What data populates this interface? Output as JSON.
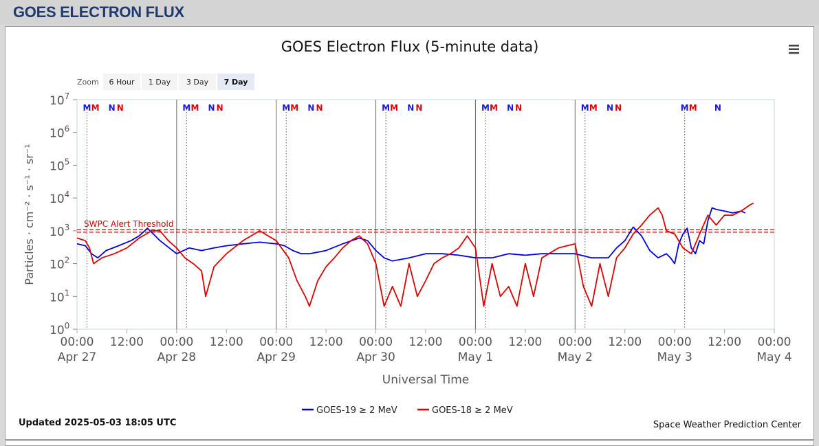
{
  "page": {
    "title": "GOES ELECTRON FLUX"
  },
  "chart": {
    "title": "GOES Electron Flux (5-minute data)",
    "zoom_label": "Zoom",
    "zoom_buttons": [
      {
        "label": "6 Hour",
        "selected": false
      },
      {
        "label": "1 Day",
        "selected": false
      },
      {
        "label": "3 Day",
        "selected": false
      },
      {
        "label": "7 Day",
        "selected": true
      }
    ],
    "updated": "Updated 2025-05-03 18:05 UTC",
    "credit": "Space Weather Prediction Center",
    "menu_icon": "hamburger-menu-icon"
  },
  "chart_data": {
    "type": "line",
    "title": "GOES Electron Flux (5-minute data)",
    "xlabel": "Universal Time",
    "ylabel": "Particles · cm⁻² · s⁻¹ · sr⁻¹",
    "yscale": "log",
    "ylim_exponent": [
      0,
      7
    ],
    "y_tick_base": "10",
    "y_tick_exponents": [
      "0",
      "1",
      "2",
      "3",
      "4",
      "5",
      "6",
      "7"
    ],
    "xlim_hours": [
      0,
      168
    ],
    "x_ticks": [
      {
        "t": 0,
        "time": "00:00",
        "date": "Apr 27"
      },
      {
        "t": 12,
        "time": "12:00",
        "date": ""
      },
      {
        "t": 24,
        "time": "00:00",
        "date": "Apr 28"
      },
      {
        "t": 36,
        "time": "12:00",
        "date": ""
      },
      {
        "t": 48,
        "time": "00:00",
        "date": "Apr 29"
      },
      {
        "t": 60,
        "time": "12:00",
        "date": ""
      },
      {
        "t": 72,
        "time": "00:00",
        "date": "Apr 30"
      },
      {
        "t": 84,
        "time": "12:00",
        "date": ""
      },
      {
        "t": 96,
        "time": "00:00",
        "date": "May 1"
      },
      {
        "t": 108,
        "time": "12:00",
        "date": ""
      },
      {
        "t": 120,
        "time": "00:00",
        "date": "May 2"
      },
      {
        "t": 132,
        "time": "12:00",
        "date": ""
      },
      {
        "t": 144,
        "time": "00:00",
        "date": "May 3"
      },
      {
        "t": 156,
        "time": "12:00",
        "date": ""
      },
      {
        "t": 168,
        "time": "00:00",
        "date": "May 4"
      }
    ],
    "threshold": {
      "label": "SWPC Alert Threshold",
      "value": 1000,
      "color": "#dd0000"
    },
    "day_lines_hours": [
      24,
      48,
      72,
      96,
      120
    ],
    "noon_lines_hours": [
      2.4,
      26.4,
      50.4,
      74.4,
      98.4,
      122.4,
      146.4
    ],
    "markers": [
      {
        "t": 2.4,
        "label": "M",
        "color": "#1a1adb"
      },
      {
        "t": 4.4,
        "label": "M",
        "color": "#dd0000"
      },
      {
        "t": 8.4,
        "label": "N",
        "color": "#1a1adb"
      },
      {
        "t": 10.4,
        "label": "N",
        "color": "#dd0000"
      },
      {
        "t": 26.4,
        "label": "M",
        "color": "#1a1adb"
      },
      {
        "t": 28.4,
        "label": "M",
        "color": "#dd0000"
      },
      {
        "t": 32.4,
        "label": "N",
        "color": "#1a1adb"
      },
      {
        "t": 34.4,
        "label": "N",
        "color": "#dd0000"
      },
      {
        "t": 50.4,
        "label": "M",
        "color": "#1a1adb"
      },
      {
        "t": 52.4,
        "label": "M",
        "color": "#dd0000"
      },
      {
        "t": 56.4,
        "label": "N",
        "color": "#1a1adb"
      },
      {
        "t": 58.4,
        "label": "N",
        "color": "#dd0000"
      },
      {
        "t": 74.4,
        "label": "M",
        "color": "#1a1adb"
      },
      {
        "t": 76.4,
        "label": "M",
        "color": "#dd0000"
      },
      {
        "t": 80.4,
        "label": "N",
        "color": "#1a1adb"
      },
      {
        "t": 82.4,
        "label": "N",
        "color": "#dd0000"
      },
      {
        "t": 98.4,
        "label": "M",
        "color": "#1a1adb"
      },
      {
        "t": 100.4,
        "label": "M",
        "color": "#dd0000"
      },
      {
        "t": 104.4,
        "label": "N",
        "color": "#1a1adb"
      },
      {
        "t": 106.4,
        "label": "N",
        "color": "#dd0000"
      },
      {
        "t": 122.4,
        "label": "M",
        "color": "#1a1adb"
      },
      {
        "t": 124.4,
        "label": "M",
        "color": "#dd0000"
      },
      {
        "t": 128.4,
        "label": "N",
        "color": "#1a1adb"
      },
      {
        "t": 130.4,
        "label": "N",
        "color": "#dd0000"
      },
      {
        "t": 146.4,
        "label": "M",
        "color": "#1a1adb"
      },
      {
        "t": 148.4,
        "label": "M",
        "color": "#dd0000"
      },
      {
        "t": 154.4,
        "label": "N",
        "color": "#1a1adb"
      }
    ],
    "series": [
      {
        "name": "GOES-19 ≥ 2 MeV",
        "color": "#0000dd",
        "t": [
          0,
          2,
          3.5,
          5,
          7,
          10,
          13,
          15,
          17,
          20,
          24,
          27,
          30,
          33,
          36,
          40,
          44,
          48,
          50,
          52,
          54,
          56,
          60,
          64,
          68,
          70,
          72,
          74,
          76,
          80,
          84,
          88,
          92,
          96,
          100,
          104,
          108,
          112,
          116,
          120,
          124,
          128,
          130,
          132,
          134,
          136,
          138,
          140,
          142,
          143,
          144,
          145,
          146,
          147,
          148,
          149,
          150,
          151,
          152,
          153,
          154,
          156,
          158,
          160,
          161
        ],
        "values": [
          400,
          350,
          200,
          150,
          250,
          350,
          500,
          700,
          1200,
          500,
          200,
          300,
          250,
          300,
          350,
          400,
          450,
          400,
          350,
          250,
          200,
          200,
          250,
          400,
          600,
          500,
          250,
          150,
          120,
          150,
          200,
          200,
          180,
          150,
          150,
          200,
          180,
          200,
          200,
          200,
          150,
          150,
          300,
          500,
          1300,
          700,
          250,
          150,
          200,
          150,
          100,
          400,
          800,
          1200,
          300,
          200,
          500,
          400,
          2000,
          5000,
          4500,
          4000,
          3500,
          4000,
          3500
        ]
      },
      {
        "name": "GOES-18 ≥ 2 MeV",
        "color": "#dd0000",
        "t": [
          0,
          2,
          3,
          4,
          6,
          9,
          12,
          15,
          18,
          20,
          22,
          24,
          26,
          28,
          30,
          31,
          33,
          36,
          40,
          44,
          48,
          51,
          53,
          55,
          56,
          58,
          60,
          62,
          64,
          66,
          68,
          70,
          72,
          74,
          76,
          78,
          80,
          82,
          84,
          86,
          88,
          90,
          92,
          94,
          96,
          98,
          100,
          102,
          104,
          106,
          108,
          110,
          112,
          116,
          120,
          122,
          124,
          126,
          128,
          130,
          132,
          134,
          136,
          138,
          140,
          141,
          142,
          144,
          146,
          148,
          150,
          152,
          154,
          156,
          158,
          160,
          162,
          163
        ],
        "values": [
          600,
          500,
          300,
          100,
          150,
          200,
          300,
          600,
          1000,
          1000,
          500,
          300,
          150,
          100,
          60,
          10,
          80,
          200,
          500,
          1000,
          500,
          150,
          30,
          10,
          5,
          30,
          80,
          150,
          300,
          500,
          700,
          400,
          100,
          5,
          20,
          5,
          100,
          10,
          30,
          100,
          150,
          200,
          300,
          700,
          300,
          5,
          100,
          10,
          20,
          5,
          100,
          10,
          150,
          300,
          400,
          20,
          5,
          100,
          10,
          150,
          300,
          800,
          1500,
          3000,
          5000,
          3000,
          1000,
          800,
          300,
          200,
          800,
          3000,
          1500,
          3000,
          3000,
          4000,
          6000,
          7000
        ]
      }
    ],
    "legend_position": "bottom"
  }
}
